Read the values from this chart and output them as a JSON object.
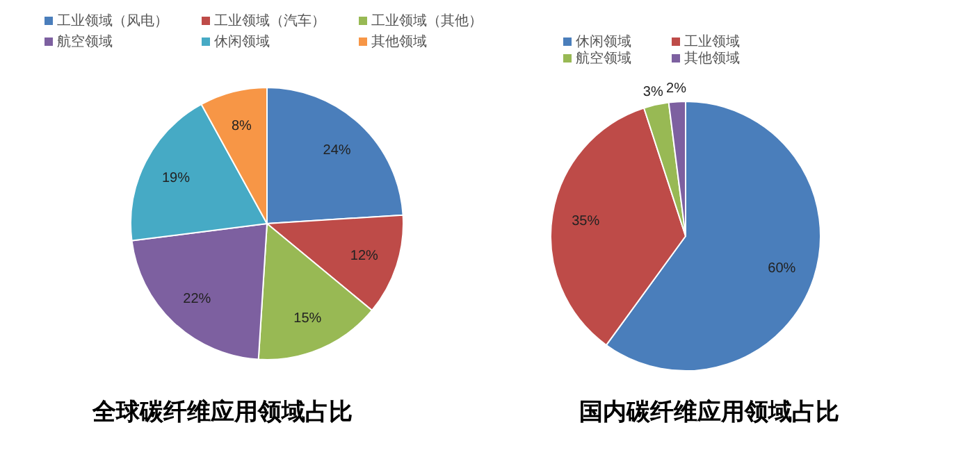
{
  "chart_data": [
    {
      "type": "pie",
      "title": "全球碳纤维应用领域占比",
      "categories": [
        "工业领域（风电）",
        "工业领域（汽车）",
        "工业领域（其他）",
        "航空领域",
        "休闲领域",
        "其他领域"
      ],
      "values": [
        24,
        12,
        15,
        22,
        19,
        8
      ],
      "colors": [
        "#4a7ebb",
        "#be4b48",
        "#98b954",
        "#7d60a0",
        "#46aac5",
        "#f79646"
      ],
      "value_labels": [
        "24%",
        "12%",
        "15%",
        "22%",
        "19%",
        "8%"
      ],
      "legend": "top"
    },
    {
      "type": "pie",
      "title": "国内碳纤维应用领域占比",
      "categories": [
        "休闲领域",
        "工业领域",
        "航空领域",
        "其他领域"
      ],
      "values": [
        60,
        35,
        3,
        2
      ],
      "colors": [
        "#4a7ebb",
        "#be4b48",
        "#98b954",
        "#7d60a0"
      ],
      "value_labels": [
        "60%",
        "35%",
        "3%",
        "2%"
      ],
      "legend": "top"
    }
  ]
}
